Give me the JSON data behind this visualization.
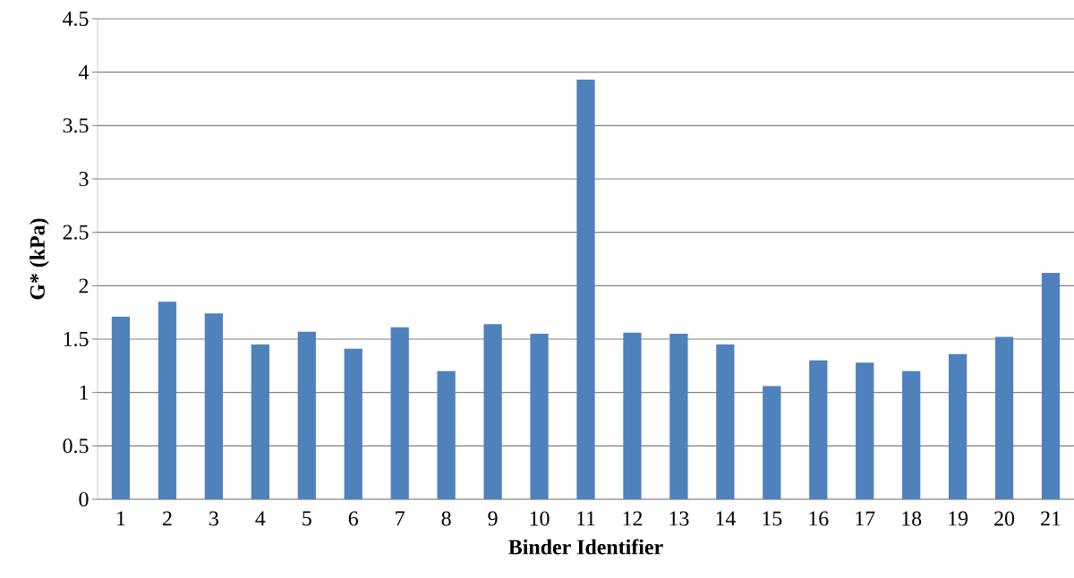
{
  "chart_data": {
    "type": "bar",
    "xlabel": "Binder Identifier",
    "ylabel": "G* (kPa)",
    "categories": [
      "1",
      "2",
      "3",
      "4",
      "5",
      "6",
      "7",
      "8",
      "9",
      "10",
      "11",
      "12",
      "13",
      "14",
      "15",
      "16",
      "17",
      "18",
      "19",
      "20",
      "21"
    ],
    "values": [
      1.71,
      1.85,
      1.74,
      1.45,
      1.57,
      1.41,
      1.61,
      1.2,
      1.64,
      1.55,
      3.93,
      1.56,
      1.55,
      1.45,
      1.06,
      1.3,
      1.28,
      1.2,
      1.36,
      1.52,
      2.12
    ],
    "color": "#4f81bd",
    "ylim": [
      0,
      4.5
    ],
    "yticks": [
      0,
      0.5,
      1,
      1.5,
      2,
      2.5,
      3,
      3.5,
      4,
      4.5
    ],
    "grid": "y"
  }
}
